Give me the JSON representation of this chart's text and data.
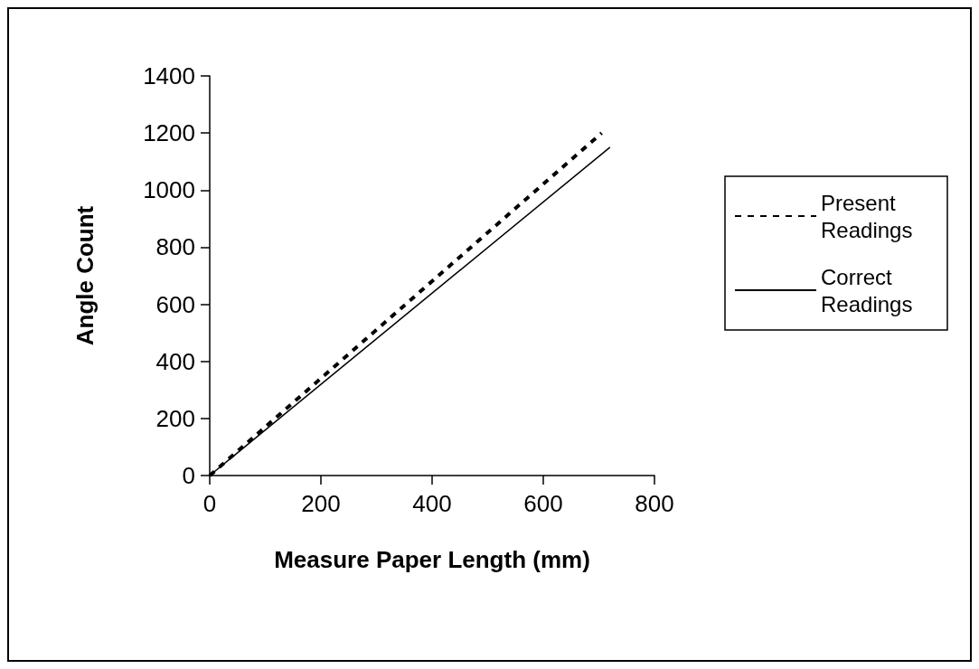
{
  "chart_data": {
    "type": "line",
    "xlabel": "Measure Paper Length (mm)",
    "ylabel": "Angle Count",
    "xlim": [
      0,
      800
    ],
    "xticks": [
      0,
      200,
      400,
      600,
      800
    ],
    "ylim": [
      0,
      1400
    ],
    "yticks": [
      0,
      200,
      400,
      600,
      800,
      1000,
      1200,
      1400
    ],
    "grid": false,
    "legend": "right",
    "marker": "none",
    "series": [
      {
        "name": "Present Readings",
        "color": "#000000",
        "line_style": "dashed",
        "x": [
          0,
          705
        ],
        "values": [
          0,
          1200
        ]
      },
      {
        "name": "Correct Readings",
        "color": "#000000",
        "line_style": "solid",
        "x": [
          0,
          720
        ],
        "values": [
          0,
          1150
        ]
      }
    ]
  }
}
